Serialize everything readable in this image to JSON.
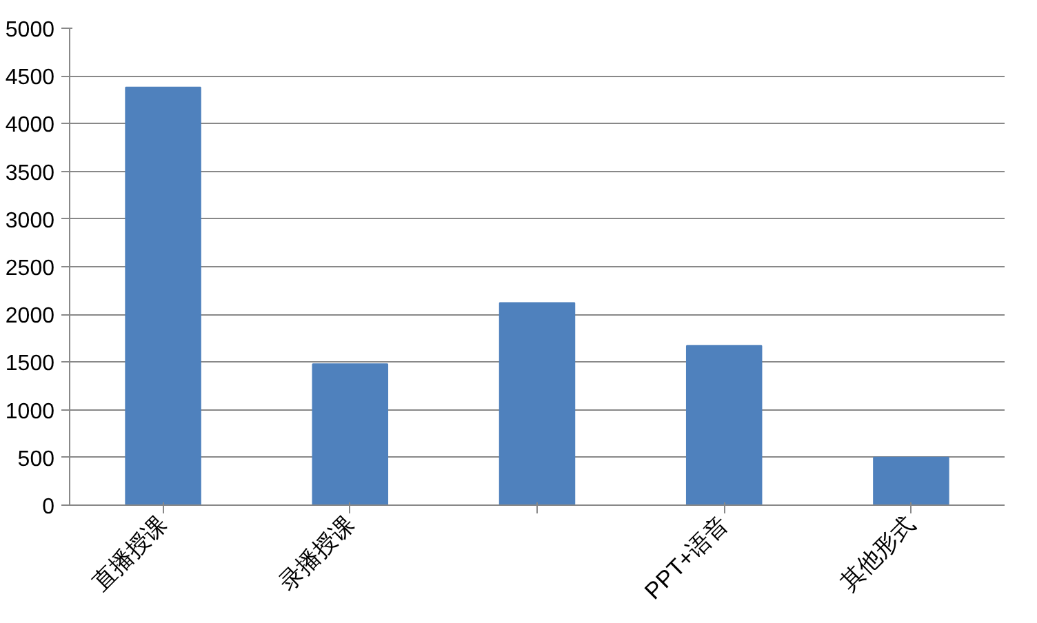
{
  "chart_data": {
    "type": "bar",
    "categories": [
      "直播授课",
      "录播授课",
      null,
      "PPT+语音",
      "其他形式"
    ],
    "values": [
      4380,
      1480,
      2120,
      1670,
      500
    ],
    "color": "#4f81bd",
    "ylim": [
      0,
      5000
    ],
    "yticks": [
      0,
      500,
      1000,
      1500,
      2000,
      2500,
      3000,
      3500,
      4000,
      4500,
      5000
    ],
    "grid": "y"
  }
}
